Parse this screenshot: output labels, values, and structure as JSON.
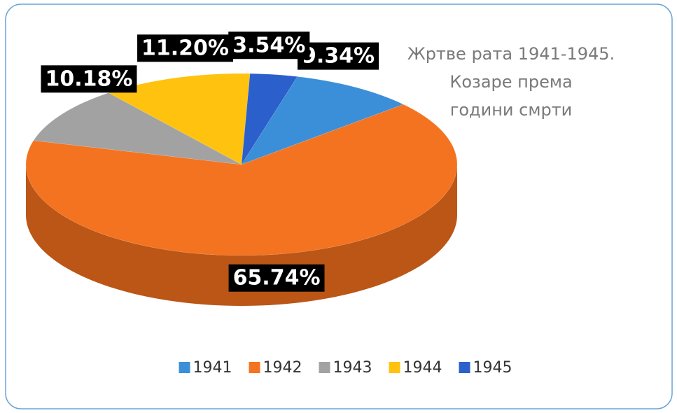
{
  "chart_data": {
    "type": "pie",
    "title": [
      "Жртве рата 1941-1945.",
      "Козаре према",
      "години смрти"
    ],
    "categories": [
      "1941",
      "1942",
      "1943",
      "1944",
      "1945"
    ],
    "values": [
      9.34,
      65.74,
      10.18,
      11.2,
      3.54
    ],
    "value_labels": [
      "9.34%",
      "65.74%",
      "10.18%",
      "11.20%",
      "3.54%"
    ],
    "colors": [
      "#3b8fd8",
      "#f47320",
      "#a2a2a2",
      "#ffc20e",
      "#2b5fcc"
    ],
    "legend": "bottom"
  }
}
